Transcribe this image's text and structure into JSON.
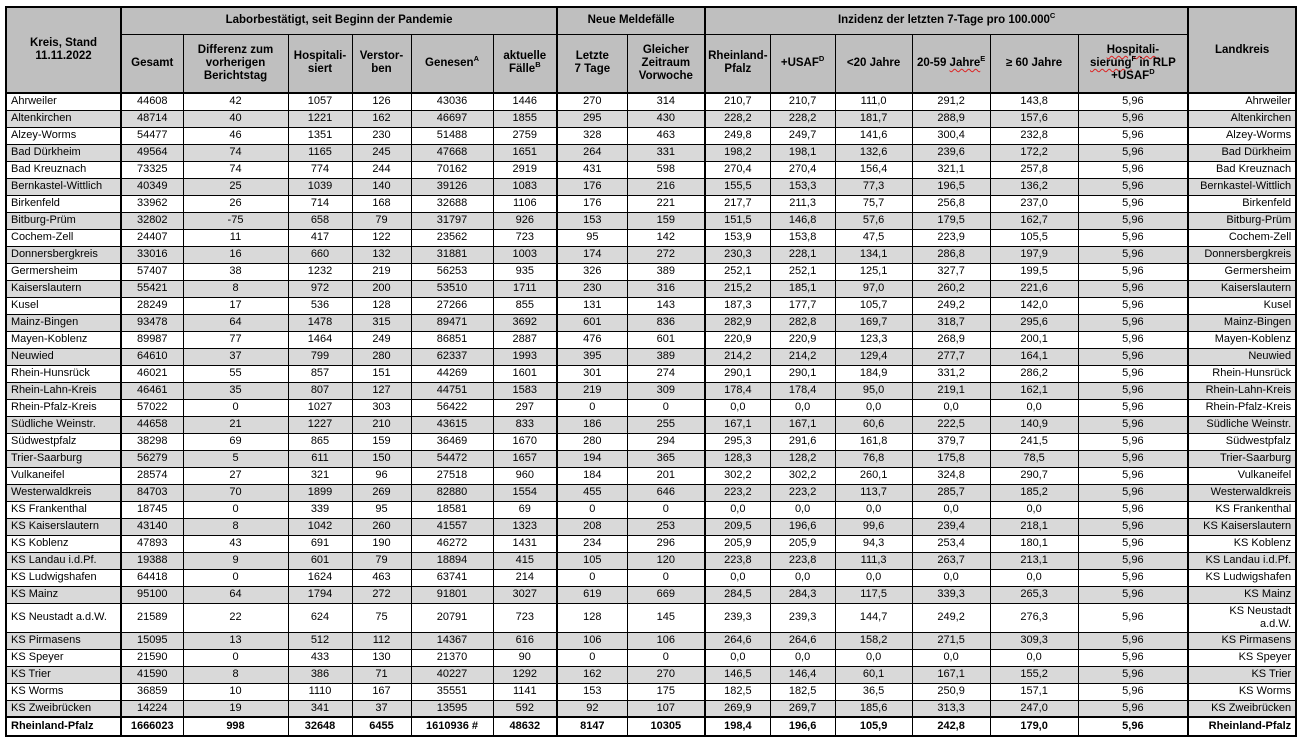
{
  "header": {
    "kreis_label": "Kreis, Stand\n11.11.2022",
    "landkreis_label": "Landkreis",
    "groups": [
      {
        "name": "laborbestaetigt",
        "colspan": 6,
        "segments": [
          {
            "t": "Laborbestätigt, seit Beginn der Pandemie"
          }
        ]
      },
      {
        "name": "neue-meldefaelle",
        "colspan": 2,
        "segments": [
          {
            "t": "Neue Meldefälle"
          }
        ]
      },
      {
        "name": "inzidenz-7-tage",
        "colspan": 6,
        "segments": [
          {
            "t": "Inzidenz der letzten 7-Tage pro 100.000"
          },
          {
            "t": "C",
            "sup": true
          }
        ]
      }
    ],
    "columns": [
      {
        "name": "gesamt",
        "segments": [
          {
            "t": "Gesamt"
          }
        ]
      },
      {
        "name": "differenz-zum-vorherigen-berichtstag",
        "segments": [
          {
            "t": "Differenz zum"
          },
          {
            "br": true
          },
          {
            "t": "vorherigen"
          },
          {
            "br": true
          },
          {
            "t": "Berichtstag"
          }
        ]
      },
      {
        "name": "hospitalisiert",
        "segments": [
          {
            "t": "Hospitali-"
          },
          {
            "br": true
          },
          {
            "t": "siert"
          }
        ]
      },
      {
        "name": "verstorben",
        "segments": [
          {
            "t": "Verstor-"
          },
          {
            "br": true
          },
          {
            "t": "ben"
          }
        ]
      },
      {
        "name": "genesen",
        "segments": [
          {
            "t": "Genesen"
          },
          {
            "t": "A",
            "sup": true
          }
        ]
      },
      {
        "name": "aktuelle-faelle",
        "segments": [
          {
            "t": "aktuelle"
          },
          {
            "br": true
          },
          {
            "t": "Fälle"
          },
          {
            "t": "B",
            "sup": true
          }
        ]
      },
      {
        "name": "letzte-7-tage",
        "segments": [
          {
            "t": "Letzte"
          },
          {
            "br": true
          },
          {
            "t": "7 Tage"
          }
        ]
      },
      {
        "name": "gleicher-zeitraum-vorwoche",
        "segments": [
          {
            "t": "Gleicher"
          },
          {
            "br": true
          },
          {
            "t": "Zeitraum"
          },
          {
            "br": true
          },
          {
            "t": "Vorwoche"
          }
        ]
      },
      {
        "name": "inzidenz-rheinland-pfalz",
        "segments": [
          {
            "t": "Rheinland-"
          },
          {
            "br": true
          },
          {
            "t": "Pfalz"
          }
        ]
      },
      {
        "name": "inzidenz-plus-usaf",
        "segments": [
          {
            "t": "+USAF"
          },
          {
            "t": "D",
            "sup": true
          }
        ]
      },
      {
        "name": "inzidenz-unter-20-jahre",
        "segments": [
          {
            "t": "<20 Jahre"
          }
        ]
      },
      {
        "name": "inzidenz-20-59-jahre",
        "segments": [
          {
            "t": "20-59 "
          },
          {
            "t": "Jahre",
            "wavy": true
          },
          {
            "t": "E",
            "sup": true
          }
        ]
      },
      {
        "name": "inzidenz-ab-60-jahre",
        "segments": [
          {
            "t": "≥ 60 Jahre"
          }
        ]
      },
      {
        "name": "hospitalisierung-in-rlp-usaf",
        "segments": [
          {
            "t": "Hospitali-",
            "wavy": true
          },
          {
            "br": true
          },
          {
            "t": "sierung",
            "wavy": true
          },
          {
            "t": "F",
            "sup": true
          },
          {
            "t": " in RLP"
          },
          {
            "br": true
          },
          {
            "t": "+USAF"
          },
          {
            "t": "D",
            "sup": true
          }
        ]
      }
    ]
  },
  "rows": [
    {
      "cells": [
        "Ahrweiler",
        "44608",
        "42",
        "1057",
        "126",
        "43036",
        "1446",
        "270",
        "314",
        "210,7",
        "210,7",
        "111,0",
        "291,2",
        "143,8",
        "5,96",
        "Ahrweiler"
      ]
    },
    {
      "cells": [
        "Altenkirchen",
        "48714",
        "40",
        "1221",
        "162",
        "46697",
        "1855",
        "295",
        "430",
        "228,2",
        "228,2",
        "181,7",
        "288,9",
        "157,6",
        "5,96",
        "Altenkirchen"
      ]
    },
    {
      "cells": [
        "Alzey-Worms",
        "54477",
        "46",
        "1351",
        "230",
        "51488",
        "2759",
        "328",
        "463",
        "249,8",
        "249,7",
        "141,6",
        "300,4",
        "232,8",
        "5,96",
        "Alzey-Worms"
      ]
    },
    {
      "cells": [
        "Bad Dürkheim",
        "49564",
        "74",
        "1165",
        "245",
        "47668",
        "1651",
        "264",
        "331",
        "198,2",
        "198,1",
        "132,6",
        "239,6",
        "172,2",
        "5,96",
        "Bad Dürkheim"
      ]
    },
    {
      "cells": [
        "Bad Kreuznach",
        "73325",
        "74",
        "774",
        "244",
        "70162",
        "2919",
        "431",
        "598",
        "270,4",
        "270,4",
        "156,4",
        "321,1",
        "257,8",
        "5,96",
        "Bad Kreuznach"
      ]
    },
    {
      "cells": [
        "Bernkastel-Wittlich",
        "40349",
        "25",
        "1039",
        "140",
        "39126",
        "1083",
        "176",
        "216",
        "155,5",
        "153,3",
        "77,3",
        "196,5",
        "136,2",
        "5,96",
        "Bernkastel-Wittlich"
      ]
    },
    {
      "cells": [
        "Birkenfeld",
        "33962",
        "26",
        "714",
        "168",
        "32688",
        "1106",
        "176",
        "221",
        "217,7",
        "211,3",
        "75,7",
        "256,8",
        "237,0",
        "5,96",
        "Birkenfeld"
      ]
    },
    {
      "cells": [
        "Bitburg-Prüm",
        "32802",
        "-75",
        "658",
        "79",
        "31797",
        "926",
        "153",
        "159",
        "151,5",
        "146,8",
        "57,6",
        "179,5",
        "162,7",
        "5,96",
        "Bitburg-Prüm"
      ]
    },
    {
      "cells": [
        "Cochem-Zell",
        "24407",
        "11",
        "417",
        "122",
        "23562",
        "723",
        "95",
        "142",
        "153,9",
        "153,8",
        "47,5",
        "223,9",
        "105,5",
        "5,96",
        "Cochem-Zell"
      ]
    },
    {
      "cells": [
        "Donnersbergkreis",
        "33016",
        "16",
        "660",
        "132",
        "31881",
        "1003",
        "174",
        "272",
        "230,3",
        "228,1",
        "134,1",
        "286,8",
        "197,9",
        "5,96",
        "Donnersbergkreis"
      ]
    },
    {
      "cells": [
        "Germersheim",
        "57407",
        "38",
        "1232",
        "219",
        "56253",
        "935",
        "326",
        "389",
        "252,1",
        "252,1",
        "125,1",
        "327,7",
        "199,5",
        "5,96",
        "Germersheim"
      ]
    },
    {
      "cells": [
        "Kaiserslautern",
        "55421",
        "8",
        "972",
        "200",
        "53510",
        "1711",
        "230",
        "316",
        "215,2",
        "185,1",
        "97,0",
        "260,2",
        "221,6",
        "5,96",
        "Kaiserslautern"
      ]
    },
    {
      "cells": [
        "Kusel",
        "28249",
        "17",
        "536",
        "128",
        "27266",
        "855",
        "131",
        "143",
        "187,3",
        "177,7",
        "105,7",
        "249,2",
        "142,0",
        "5,96",
        "Kusel"
      ]
    },
    {
      "cells": [
        "Mainz-Bingen",
        "93478",
        "64",
        "1478",
        "315",
        "89471",
        "3692",
        "601",
        "836",
        "282,9",
        "282,8",
        "169,7",
        "318,7",
        "295,6",
        "5,96",
        "Mainz-Bingen"
      ]
    },
    {
      "cells": [
        "Mayen-Koblenz",
        "89987",
        "77",
        "1464",
        "249",
        "86851",
        "2887",
        "476",
        "601",
        "220,9",
        "220,9",
        "123,3",
        "268,9",
        "200,1",
        "5,96",
        "Mayen-Koblenz"
      ]
    },
    {
      "cells": [
        "Neuwied",
        "64610",
        "37",
        "799",
        "280",
        "62337",
        "1993",
        "395",
        "389",
        "214,2",
        "214,2",
        "129,4",
        "277,7",
        "164,1",
        "5,96",
        "Neuwied"
      ]
    },
    {
      "cells": [
        "Rhein-Hunsrück",
        "46021",
        "55",
        "857",
        "151",
        "44269",
        "1601",
        "301",
        "274",
        "290,1",
        "290,1",
        "184,9",
        "331,2",
        "286,2",
        "5,96",
        "Rhein-Hunsrück"
      ]
    },
    {
      "cells": [
        "Rhein-Lahn-Kreis",
        "46461",
        "35",
        "807",
        "127",
        "44751",
        "1583",
        "219",
        "309",
        "178,4",
        "178,4",
        "95,0",
        "219,1",
        "162,1",
        "5,96",
        "Rhein-Lahn-Kreis"
      ]
    },
    {
      "cells": [
        "Rhein-Pfalz-Kreis",
        "57022",
        "0",
        "1027",
        "303",
        "56422",
        "297",
        "0",
        "0",
        "0,0",
        "0,0",
        "0,0",
        "0,0",
        "0,0",
        "5,96",
        "Rhein-Pfalz-Kreis"
      ]
    },
    {
      "cells": [
        "Südliche Weinstr.",
        "44658",
        "21",
        "1227",
        "210",
        "43615",
        "833",
        "186",
        "255",
        "167,1",
        "167,1",
        "60,6",
        "222,5",
        "140,9",
        "5,96",
        "Südliche Weinstr."
      ]
    },
    {
      "cells": [
        "Südwestpfalz",
        "38298",
        "69",
        "865",
        "159",
        "36469",
        "1670",
        "280",
        "294",
        "295,3",
        "291,6",
        "161,8",
        "379,7",
        "241,5",
        "5,96",
        "Südwestpfalz"
      ]
    },
    {
      "cells": [
        "Trier-Saarburg",
        "56279",
        "5",
        "611",
        "150",
        "54472",
        "1657",
        "194",
        "365",
        "128,3",
        "128,2",
        "76,8",
        "175,8",
        "78,5",
        "5,96",
        "Trier-Saarburg"
      ]
    },
    {
      "cells": [
        "Vulkaneifel",
        "28574",
        "27",
        "321",
        "96",
        "27518",
        "960",
        "184",
        "201",
        "302,2",
        "302,2",
        "260,1",
        "324,8",
        "290,7",
        "5,96",
        "Vulkaneifel"
      ]
    },
    {
      "cells": [
        "Westerwaldkreis",
        "84703",
        "70",
        "1899",
        "269",
        "82880",
        "1554",
        "455",
        "646",
        "223,2",
        "223,2",
        "113,7",
        "285,7",
        "185,2",
        "5,96",
        "Westerwaldkreis"
      ]
    },
    {
      "cells": [
        "KS Frankenthal",
        "18745",
        "0",
        "339",
        "95",
        "18581",
        "69",
        "0",
        "0",
        "0,0",
        "0,0",
        "0,0",
        "0,0",
        "0,0",
        "5,96",
        "KS Frankenthal"
      ]
    },
    {
      "cells": [
        "KS Kaiserslautern",
        "43140",
        "8",
        "1042",
        "260",
        "41557",
        "1323",
        "208",
        "253",
        "209,5",
        "196,6",
        "99,6",
        "239,4",
        "218,1",
        "5,96",
        "KS Kaiserslautern"
      ]
    },
    {
      "cells": [
        "KS Koblenz",
        "47893",
        "43",
        "691",
        "190",
        "46272",
        "1431",
        "234",
        "296",
        "205,9",
        "205,9",
        "94,3",
        "253,4",
        "180,1",
        "5,96",
        "KS Koblenz"
      ]
    },
    {
      "cells": [
        "KS Landau i.d.Pf.",
        "19388",
        "9",
        "601",
        "79",
        "18894",
        "415",
        "105",
        "120",
        "223,8",
        "223,8",
        "111,3",
        "263,7",
        "213,1",
        "5,96",
        "KS Landau i.d.Pf."
      ]
    },
    {
      "cells": [
        "KS Ludwigshafen",
        "64418",
        "0",
        "1624",
        "463",
        "63741",
        "214",
        "0",
        "0",
        "0,0",
        "0,0",
        "0,0",
        "0,0",
        "0,0",
        "5,96",
        "KS Ludwigshafen"
      ]
    },
    {
      "cells": [
        "KS Mainz",
        "95100",
        "64",
        "1794",
        "272",
        "91801",
        "3027",
        "619",
        "669",
        "284,5",
        "284,3",
        "117,5",
        "339,3",
        "265,3",
        "5,96",
        "KS Mainz"
      ]
    },
    {
      "cells": [
        "KS Neustadt a.d.W.",
        "21589",
        "22",
        "624",
        "75",
        "20791",
        "723",
        "128",
        "145",
        "239,3",
        "239,3",
        "144,7",
        "249,2",
        "276,3",
        "5,96",
        "KS Neustadt\na.d.W."
      ]
    },
    {
      "cells": [
        "KS Pirmasens",
        "15095",
        "13",
        "512",
        "112",
        "14367",
        "616",
        "106",
        "106",
        "264,6",
        "264,6",
        "158,2",
        "271,5",
        "309,3",
        "5,96",
        "KS Pirmasens"
      ]
    },
    {
      "cells": [
        "KS Speyer",
        "21590",
        "0",
        "433",
        "130",
        "21370",
        "90",
        "0",
        "0",
        "0,0",
        "0,0",
        "0,0",
        "0,0",
        "0,0",
        "5,96",
        "KS Speyer"
      ]
    },
    {
      "cells": [
        "KS Trier",
        "41590",
        "8",
        "386",
        "71",
        "40227",
        "1292",
        "162",
        "270",
        "146,5",
        "146,4",
        "60,1",
        "167,1",
        "155,2",
        "5,96",
        "KS Trier"
      ]
    },
    {
      "cells": [
        "KS Worms",
        "36859",
        "10",
        "1110",
        "167",
        "35551",
        "1141",
        "153",
        "175",
        "182,5",
        "182,5",
        "36,5",
        "250,9",
        "157,1",
        "5,96",
        "KS Worms"
      ]
    },
    {
      "cells": [
        "KS Zweibrücken",
        "14224",
        "19",
        "341",
        "37",
        "13595",
        "592",
        "92",
        "107",
        "269,9",
        "269,7",
        "185,6",
        "313,3",
        "247,0",
        "5,96",
        "KS Zweibrücken"
      ]
    }
  ],
  "total": {
    "cells": [
      "Rheinland-Pfalz",
      "1666023",
      "998",
      "32648",
      "6455",
      "1610936 #",
      "48632",
      "8147",
      "10305",
      "198,4",
      "196,6",
      "105,9",
      "242,8",
      "179,0",
      "5,96",
      "Rheinland-Pfalz"
    ]
  },
  "colors": {
    "header_bg": "#bfbfbf",
    "stripe_bg": "#d9d9d9",
    "border": "#000000",
    "spellcheck_underline": "#dd2222"
  }
}
